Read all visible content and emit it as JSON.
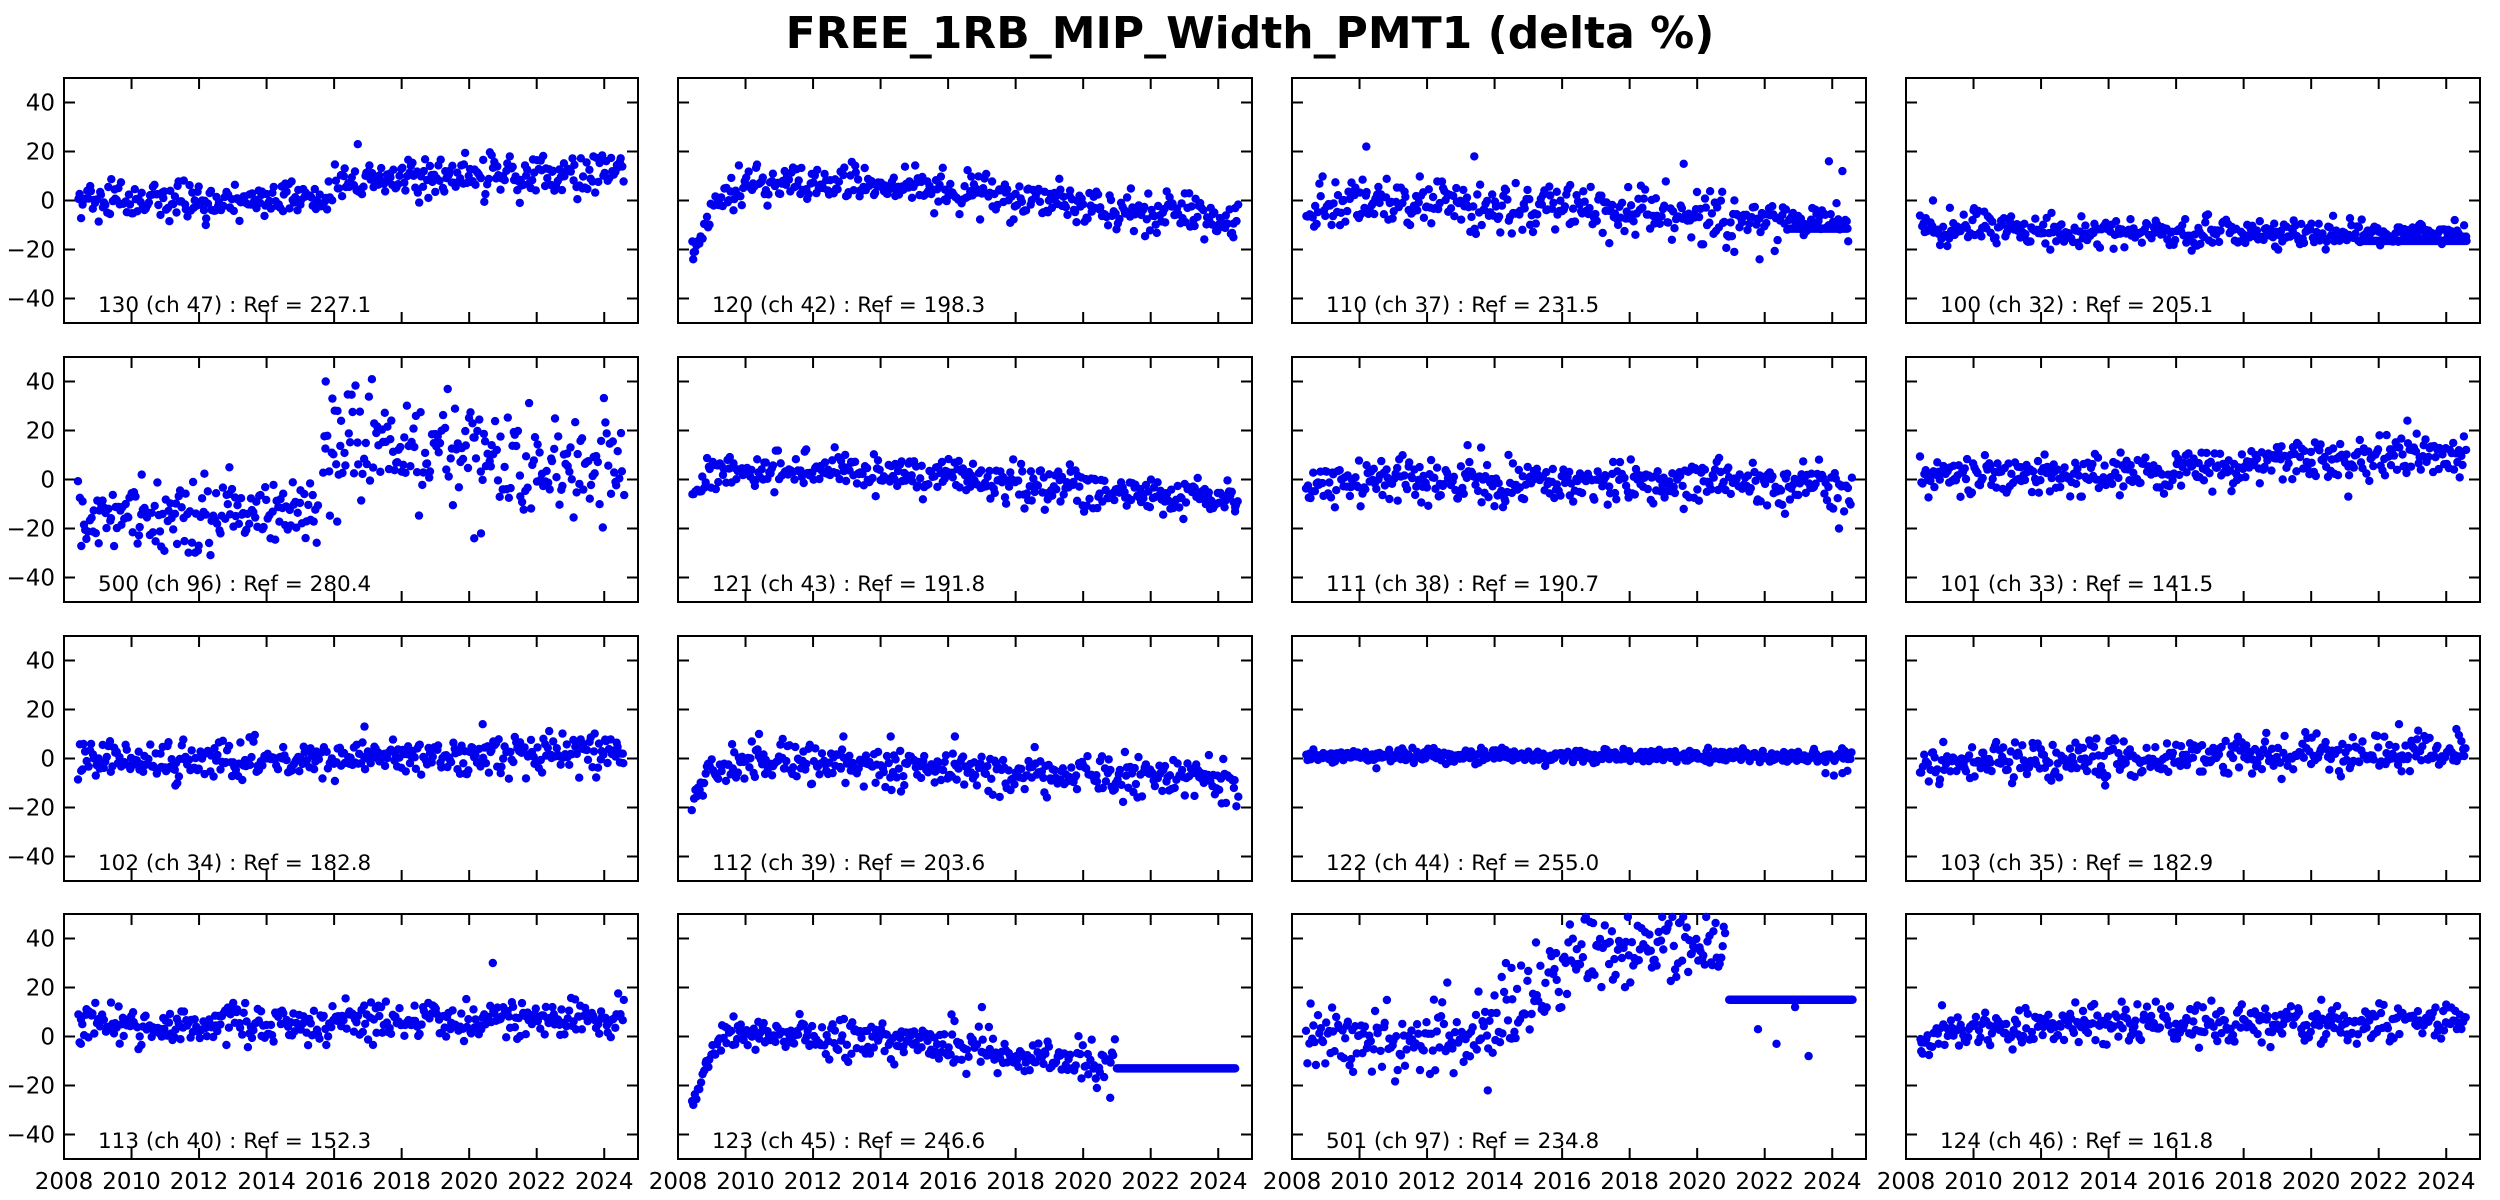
{
  "title": "FREE_1RB_MIP_Width_PMT1 (delta %)",
  "style": {
    "dot_color": "#0000ee",
    "axis_color": "#000000",
    "background": "#ffffff",
    "text_color": "#000000"
  },
  "axes": {
    "xlim": [
      2008,
      2025
    ],
    "ylim": [
      -50,
      50
    ],
    "xticks": [
      2008,
      2010,
      2012,
      2014,
      2016,
      2018,
      2020,
      2022,
      2024
    ],
    "xtick_labels": [
      "2008",
      "2010",
      "2012",
      "2014",
      "2016",
      "2018",
      "2020",
      "2022",
      "2024"
    ],
    "yticks": [
      40,
      20,
      0,
      -20,
      -40
    ],
    "ytick_labels": [
      "40",
      "20",
      "0",
      "−20",
      "−40"
    ]
  },
  "grid": {
    "rows": 4,
    "cols": 4
  },
  "chart_data": [
    {
      "type": "scatter",
      "label": "130 (ch 47) : Ref = 227.1",
      "channel": "130",
      "ch": "ch 47",
      "ref": 227.1,
      "seed": 101,
      "trend": [
        {
          "x0": 2008.4,
          "x1": 2015.95,
          "y0": 0,
          "y1": 0.5,
          "s": 3.6
        },
        {
          "x0": 2016.0,
          "x1": 2024.6,
          "y0": 8,
          "y1": 11,
          "s": 4.2
        }
      ],
      "flat_lines": [],
      "outliers": [
        [
          2016.7,
          23
        ],
        [
          2012.2,
          -10
        ],
        [
          2021.5,
          -1
        ]
      ]
    },
    {
      "type": "scatter",
      "label": "120 (ch 42) : Ref = 198.3",
      "channel": "120",
      "ch": "ch 42",
      "ref": 198.3,
      "seed": 102,
      "trend": [
        {
          "x0": 2008.4,
          "x1": 2008.7,
          "y0": -21,
          "y1": -14,
          "s": 2.5
        },
        {
          "x0": 2008.7,
          "x1": 2009.4,
          "y0": -11,
          "y1": 3,
          "s": 3
        },
        {
          "x0": 2009.4,
          "x1": 2013.0,
          "y0": 5,
          "y1": 7,
          "s": 3.8
        },
        {
          "x0": 2013.0,
          "x1": 2016.5,
          "y0": 7,
          "y1": 3,
          "s": 4
        },
        {
          "x0": 2016.5,
          "x1": 2020.5,
          "y0": 3,
          "y1": -3,
          "s": 4.2
        },
        {
          "x0": 2020.5,
          "x1": 2024.6,
          "y0": -4,
          "y1": -7,
          "s": 4
        }
      ],
      "flat_lines": [],
      "outliers": [
        [
          2008.45,
          -24
        ],
        [
          2024.45,
          -15
        ]
      ]
    },
    {
      "type": "scatter",
      "label": "110 (ch 37) : Ref = 231.5",
      "channel": "110",
      "ch": "ch 37",
      "ref": 231.5,
      "seed": 103,
      "trend": [
        {
          "x0": 2008.4,
          "x1": 2008.8,
          "y0": -9,
          "y1": -4,
          "s": 3
        },
        {
          "x0": 2008.8,
          "x1": 2013.0,
          "y0": -1,
          "y1": -1,
          "s": 4.5
        },
        {
          "x0": 2013.0,
          "x1": 2017.0,
          "y0": -2,
          "y1": -4,
          "s": 5
        },
        {
          "x0": 2017.0,
          "x1": 2020.5,
          "y0": -4,
          "y1": -6,
          "s": 5.5
        },
        {
          "x0": 2020.5,
          "x1": 2022.7,
          "y0": -7,
          "y1": -9,
          "s": 5
        },
        {
          "x0": 2022.7,
          "x1": 2024.5,
          "y0": -8,
          "y1": -9,
          "s": 3.2
        }
      ],
      "flat_lines": [
        {
          "x0": 2022.75,
          "x1": 2024.45,
          "y": -11.5
        }
      ],
      "outliers": [
        [
          2010.2,
          22
        ],
        [
          2013.4,
          18
        ],
        [
          2019.6,
          15
        ],
        [
          2021.1,
          -21
        ],
        [
          2021.85,
          -24
        ],
        [
          2023.9,
          16
        ],
        [
          2024.3,
          12
        ]
      ]
    },
    {
      "type": "scatter",
      "label": "100 (ch 32) : Ref = 205.1",
      "channel": "100",
      "ch": "ch 32",
      "ref": 205.1,
      "seed": 104,
      "trend": [
        {
          "x0": 2008.4,
          "x1": 2010.5,
          "y0": -11,
          "y1": -12,
          "s": 3.6
        },
        {
          "x0": 2010.5,
          "x1": 2021.3,
          "y0": -12.5,
          "y1": -14,
          "s": 3.2
        },
        {
          "x0": 2021.3,
          "x1": 2024.6,
          "y0": -13,
          "y1": -13,
          "s": 2.2
        }
      ],
      "flat_lines": [
        {
          "x0": 2021.4,
          "x1": 2024.6,
          "y": -16.5
        }
      ],
      "outliers": [
        [
          2008.8,
          0
        ],
        [
          2009.3,
          -3
        ],
        [
          2010.0,
          -4
        ],
        [
          2024.25,
          -8
        ],
        [
          2023.2,
          -10
        ]
      ]
    },
    {
      "type": "scatter",
      "label": "500 (ch 96) : Ref = 280.4",
      "channel": "500",
      "ch": "ch 96",
      "ref": 280.4,
      "seed": 105,
      "trend": [
        {
          "x0": 2008.4,
          "x1": 2015.55,
          "y0": -16,
          "y1": -13,
          "s": 7
        },
        {
          "x0": 2015.65,
          "x1": 2017.3,
          "y0": 10,
          "y1": 16,
          "s": 12
        },
        {
          "x0": 2017.3,
          "x1": 2021.0,
          "y0": 10,
          "y1": 11,
          "s": 11
        },
        {
          "x0": 2021.0,
          "x1": 2024.6,
          "y0": 6,
          "y1": 7,
          "s": 11
        }
      ],
      "flat_lines": [],
      "outliers": [
        [
          2015.75,
          40
        ],
        [
          2015.95,
          33
        ],
        [
          2016.1,
          28
        ],
        [
          2020.15,
          -24
        ],
        [
          2020.35,
          -22
        ],
        [
          2012.9,
          5
        ],
        [
          2010.3,
          2
        ]
      ]
    },
    {
      "type": "scatter",
      "label": "121 (ch 43) : Ref = 191.8",
      "channel": "121",
      "ch": "ch 43",
      "ref": 191.8,
      "seed": 106,
      "trend": [
        {
          "x0": 2008.4,
          "x1": 2008.8,
          "y0": -6,
          "y1": -2,
          "s": 2.5
        },
        {
          "x0": 2008.8,
          "x1": 2012.5,
          "y0": 2,
          "y1": 4,
          "s": 3.6
        },
        {
          "x0": 2012.5,
          "x1": 2018.0,
          "y0": 4,
          "y1": -1,
          "s": 4
        },
        {
          "x0": 2018.0,
          "x1": 2024.6,
          "y0": -2,
          "y1": -8,
          "s": 4
        }
      ],
      "flat_lines": [],
      "outliers": [
        [
          2024.5,
          -13
        ]
      ]
    },
    {
      "type": "scatter",
      "label": "111 (ch 38) : Ref = 190.7",
      "channel": "111",
      "ch": "ch 38",
      "ref": 190.7,
      "seed": 107,
      "trend": [
        {
          "x0": 2008.4,
          "x1": 2009.0,
          "y0": -4,
          "y1": -2,
          "s": 3.4
        },
        {
          "x0": 2009.0,
          "x1": 2020.0,
          "y0": -1,
          "y1": -1,
          "s": 4.6
        },
        {
          "x0": 2020.0,
          "x1": 2024.6,
          "y0": -1,
          "y1": -3,
          "s": 5
        }
      ],
      "flat_lines": [],
      "outliers": [
        [
          2013.2,
          14
        ],
        [
          2013.6,
          13
        ],
        [
          2022.6,
          -14
        ],
        [
          2024.2,
          -20
        ],
        [
          2024.35,
          -13
        ]
      ]
    },
    {
      "type": "scatter",
      "label": "101 (ch 33) : Ref = 141.5",
      "channel": "101",
      "ch": "ch 33",
      "ref": 141.5,
      "seed": 108,
      "trend": [
        {
          "x0": 2008.4,
          "x1": 2012.0,
          "y0": 1,
          "y1": 2,
          "s": 3.5
        },
        {
          "x0": 2012.0,
          "x1": 2018.0,
          "y0": 2,
          "y1": 5,
          "s": 4
        },
        {
          "x0": 2018.0,
          "x1": 2024.6,
          "y0": 6,
          "y1": 10,
          "s": 4
        }
      ],
      "flat_lines": [],
      "outliers": [
        [
          2022.85,
          24
        ],
        [
          2021.1,
          -7
        ]
      ]
    },
    {
      "type": "scatter",
      "label": "102 (ch 34) : Ref = 182.8",
      "channel": "102",
      "ch": "ch 34",
      "ref": 182.8,
      "seed": 109,
      "trend": [
        {
          "x0": 2008.4,
          "x1": 2024.6,
          "y0": -1,
          "y1": 2,
          "s": 4
        }
      ],
      "flat_lines": [],
      "outliers": [
        [
          2020.4,
          14
        ],
        [
          2016.9,
          13
        ],
        [
          2011.3,
          -11
        ]
      ]
    },
    {
      "type": "scatter",
      "label": "112 (ch 39) : Ref = 203.6",
      "channel": "112",
      "ch": "ch 39",
      "ref": 203.6,
      "seed": 110,
      "trend": [
        {
          "x0": 2008.4,
          "x1": 2008.75,
          "y0": -17,
          "y1": -10,
          "s": 2.8
        },
        {
          "x0": 2008.75,
          "x1": 2009.4,
          "y0": -8,
          "y1": -2,
          "s": 3
        },
        {
          "x0": 2009.4,
          "x1": 2014.0,
          "y0": -2,
          "y1": -3,
          "s": 4
        },
        {
          "x0": 2014.0,
          "x1": 2019.0,
          "y0": -3,
          "y1": -6,
          "s": 4.4
        },
        {
          "x0": 2019.0,
          "x1": 2024.6,
          "y0": -6,
          "y1": -9,
          "s": 4.4
        }
      ],
      "flat_lines": [],
      "outliers": [
        [
          2010.4,
          10
        ],
        [
          2012.9,
          9
        ],
        [
          2014.3,
          9
        ],
        [
          2016.2,
          9
        ],
        [
          2011.1,
          8
        ]
      ]
    },
    {
      "type": "scatter",
      "label": "122 (ch 44) : Ref = 255.0",
      "channel": "122",
      "ch": "ch 44",
      "ref": 255.0,
      "seed": 111,
      "trend": [
        {
          "x0": 2008.4,
          "x1": 2024.6,
          "y0": 1,
          "y1": 1,
          "s": 1.4
        }
      ],
      "flat_lines": [],
      "outliers": [
        [
          2010.5,
          -4
        ],
        [
          2015.5,
          -3
        ],
        [
          2023.8,
          -6
        ],
        [
          2024.05,
          -7
        ],
        [
          2024.3,
          -6
        ],
        [
          2024.45,
          -5
        ]
      ]
    },
    {
      "type": "scatter",
      "label": "103 (ch 35) : Ref = 182.9",
      "channel": "103",
      "ch": "ch 35",
      "ref": 182.9,
      "seed": 112,
      "trend": [
        {
          "x0": 2008.4,
          "x1": 2024.6,
          "y0": -1,
          "y1": 2,
          "s": 4
        }
      ],
      "flat_lines": [],
      "outliers": [
        [
          2022.6,
          14
        ],
        [
          2024.3,
          12
        ],
        [
          2013.9,
          -11
        ]
      ]
    },
    {
      "type": "scatter",
      "label": "113 (ch 40) : Ref = 152.3",
      "channel": "113",
      "ch": "ch 40",
      "ref": 152.3,
      "seed": 113,
      "trend": [
        {
          "x0": 2008.4,
          "x1": 2024.6,
          "y0": 4,
          "y1": 8,
          "s": 4
        }
      ],
      "flat_lines": [],
      "outliers": [
        [
          2020.7,
          30
        ],
        [
          2008.5,
          -3
        ]
      ]
    },
    {
      "type": "scatter",
      "label": "123 (ch 45) : Ref = 246.6",
      "channel": "123",
      "ch": "ch 45",
      "ref": 246.6,
      "seed": 114,
      "trend": [
        {
          "x0": 2008.4,
          "x1": 2008.7,
          "y0": -27,
          "y1": -20,
          "s": 2
        },
        {
          "x0": 2008.7,
          "x1": 2009.25,
          "y0": -15,
          "y1": -2,
          "s": 3
        },
        {
          "x0": 2009.25,
          "x1": 2012.0,
          "y0": 1,
          "y1": 1,
          "s": 3.4
        },
        {
          "x0": 2012.0,
          "x1": 2016.0,
          "y0": 0,
          "y1": -3,
          "s": 4
        },
        {
          "x0": 2016.0,
          "x1": 2019.0,
          "y0": -4,
          "y1": -8,
          "s": 4.4
        },
        {
          "x0": 2019.0,
          "x1": 2020.95,
          "y0": -9,
          "y1": -11,
          "s": 4.4
        }
      ],
      "flat_lines": [
        {
          "x0": 2021.0,
          "x1": 2024.5,
          "y": -13
        }
      ],
      "outliers": [
        [
          2020.8,
          -25
        ],
        [
          2016.1,
          9
        ],
        [
          2017.0,
          12
        ]
      ]
    },
    {
      "type": "scatter",
      "label": "501 (ch 97) : Ref = 234.8",
      "channel": "501",
      "ch": "ch 97",
      "ref": 234.8,
      "seed": 115,
      "trend": [
        {
          "x0": 2008.4,
          "x1": 2013.5,
          "y0": -1,
          "y1": -2,
          "s": 7
        },
        {
          "x0": 2013.5,
          "x1": 2016.0,
          "y0": 0,
          "y1": 25,
          "s": 9
        },
        {
          "x0": 2016.0,
          "x1": 2020.85,
          "y0": 35,
          "y1": 38,
          "s": 8
        }
      ],
      "flat_lines": [
        {
          "x0": 2020.95,
          "x1": 2024.6,
          "y": 15
        }
      ],
      "outliers": [
        [
          2021.8,
          3
        ],
        [
          2022.35,
          -3
        ],
        [
          2022.9,
          12
        ],
        [
          2014.5,
          28
        ],
        [
          2012.6,
          22
        ],
        [
          2013.8,
          -22
        ],
        [
          2023.3,
          -8
        ]
      ]
    },
    {
      "type": "scatter",
      "label": "124 (ch 46) : Ref = 161.8",
      "channel": "124",
      "ch": "ch 46",
      "ref": 161.8,
      "seed": 116,
      "trend": [
        {
          "x0": 2008.4,
          "x1": 2009.0,
          "y0": -3,
          "y1": 2,
          "s": 3
        },
        {
          "x0": 2009.0,
          "x1": 2024.6,
          "y0": 4,
          "y1": 6,
          "s": 4
        }
      ],
      "flat_lines": [],
      "outliers": [
        [
          2020.3,
          15
        ],
        [
          2024.0,
          13
        ],
        [
          2008.45,
          -6
        ]
      ]
    }
  ]
}
